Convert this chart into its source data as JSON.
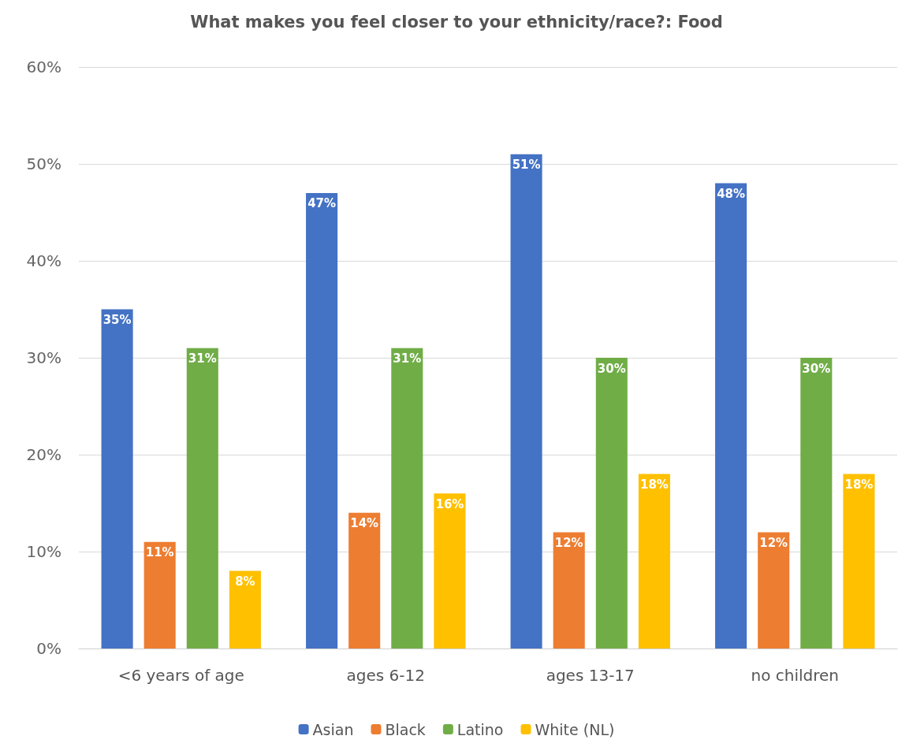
{
  "chart_data": {
    "type": "bar",
    "title": "What makes you feel closer to your ethnicity/race?: Food",
    "categories": [
      "<6 years of age",
      "ages 6-12",
      "ages 13-17",
      "no children"
    ],
    "series": [
      {
        "name": "Asian",
        "color": "#4472c4",
        "values": [
          35,
          47,
          51,
          48
        ],
        "value_labels": [
          "35%",
          "47%",
          "51%",
          "48%"
        ]
      },
      {
        "name": "Black",
        "color": "#ed7d31",
        "values": [
          11,
          14,
          12,
          12
        ],
        "value_labels": [
          "11%",
          "14%",
          "12%",
          "12%"
        ]
      },
      {
        "name": "Latino",
        "color": "#70ad47",
        "values": [
          31,
          31,
          30,
          30
        ],
        "value_labels": [
          "31%",
          "31%",
          "30%",
          "30%"
        ]
      },
      {
        "name": "White (NL)",
        "color": "#ffc000",
        "values": [
          8,
          16,
          18,
          18
        ],
        "value_labels": [
          "8%",
          "16%",
          "18%",
          "18%"
        ]
      }
    ],
    "ylim": [
      0,
      60
    ],
    "yticks": [
      {
        "value": 0,
        "label": "0%"
      },
      {
        "value": 10,
        "label": "10%"
      },
      {
        "value": 20,
        "label": "20%"
      },
      {
        "value": 30,
        "label": "30%"
      },
      {
        "value": 40,
        "label": "40%"
      },
      {
        "value": 50,
        "label": "50%"
      },
      {
        "value": 60,
        "label": "60%"
      }
    ],
    "grid": "y",
    "legend": "bottom"
  }
}
